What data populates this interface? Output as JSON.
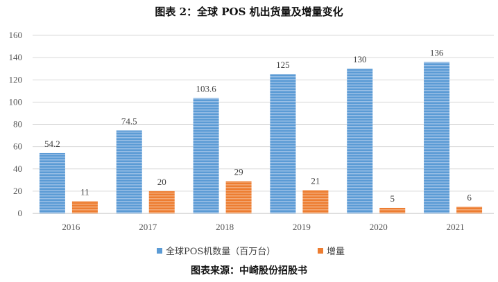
{
  "title": "图表 2：全球 POS 机出货量及增量变化",
  "source": "图表来源：中崎股份招股书",
  "colors": {
    "series1": "#5b9bd5",
    "series2": "#ed7d31"
  },
  "chart_data": {
    "type": "bar",
    "categories": [
      "2016",
      "2017",
      "2018",
      "2019",
      "2020",
      "2021"
    ],
    "series": [
      {
        "name": "全球POS机数量（百万台）",
        "values": [
          54.2,
          74.5,
          103.6,
          125,
          130,
          136
        ],
        "labels": [
          "54.2",
          "74.5",
          "103.6",
          "125",
          "130",
          "136"
        ]
      },
      {
        "name": "增量",
        "values": [
          11,
          20,
          29,
          21,
          5,
          6
        ],
        "labels": [
          "11",
          "20",
          "29",
          "21",
          "5",
          "6"
        ]
      }
    ],
    "ylim": [
      0,
      160
    ],
    "yticks": [
      "0",
      "20",
      "40",
      "60",
      "80",
      "100",
      "120",
      "140",
      "160"
    ],
    "grid": true,
    "legend": "bottom"
  }
}
